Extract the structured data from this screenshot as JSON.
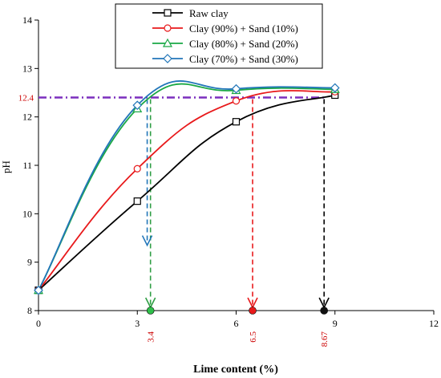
{
  "chart_data": {
    "type": "line",
    "xlabel": "Lime content (%)",
    "ylabel": "pH",
    "xlim": [
      0,
      12
    ],
    "ylim": [
      8,
      14
    ],
    "xticks": [
      0,
      3,
      6,
      9,
      12
    ],
    "yticks": [
      8,
      9,
      10,
      11,
      12,
      13,
      14
    ],
    "grid": false,
    "legend_position": "top-right",
    "series": [
      {
        "name": "Raw clay",
        "color": "#000000",
        "marker": "square",
        "x": [
          0,
          3,
          6,
          9
        ],
        "y": [
          8.42,
          10.26,
          11.9,
          12.45
        ]
      },
      {
        "name": "Clay (90%) + Sand (10%)",
        "color": "#e8191b",
        "marker": "circle",
        "x": [
          0,
          3,
          6,
          9
        ],
        "y": [
          8.42,
          10.93,
          12.33,
          12.52
        ]
      },
      {
        "name": "Clay (80%) + Sand (20%)",
        "color": "#1aa845",
        "marker": "triangle",
        "x": [
          0,
          3,
          6,
          9
        ],
        "y": [
          8.42,
          12.17,
          12.55,
          12.57
        ]
      },
      {
        "name": "Clay (70%) + Sand (30%)",
        "color": "#2276b9",
        "marker": "diamond",
        "x": [
          0,
          3,
          6,
          9
        ],
        "y": [
          8.42,
          12.24,
          12.58,
          12.6
        ]
      }
    ],
    "annotations": {
      "threshold": {
        "y": 12.4,
        "label": "12.4",
        "color": "#7b2fbe",
        "label_color": "#cc0000"
      },
      "drops": [
        {
          "x": 3.4,
          "label": "3.4",
          "line_color": "#2f9e44",
          "label_color": "#cc0000",
          "dot_color": "#2fbf4a"
        },
        {
          "x": 3.3,
          "label": "",
          "line_color": "#2276b9",
          "end_y": 9.35
        },
        {
          "x": 6.5,
          "label": "6.5",
          "line_color": "#e8191b",
          "label_color": "#cc0000",
          "dot_color": "#e8191b"
        },
        {
          "x": 8.67,
          "label": "8.67",
          "line_color": "#000000",
          "label_color": "#cc0000",
          "dot_color": "#111111"
        }
      ]
    }
  }
}
